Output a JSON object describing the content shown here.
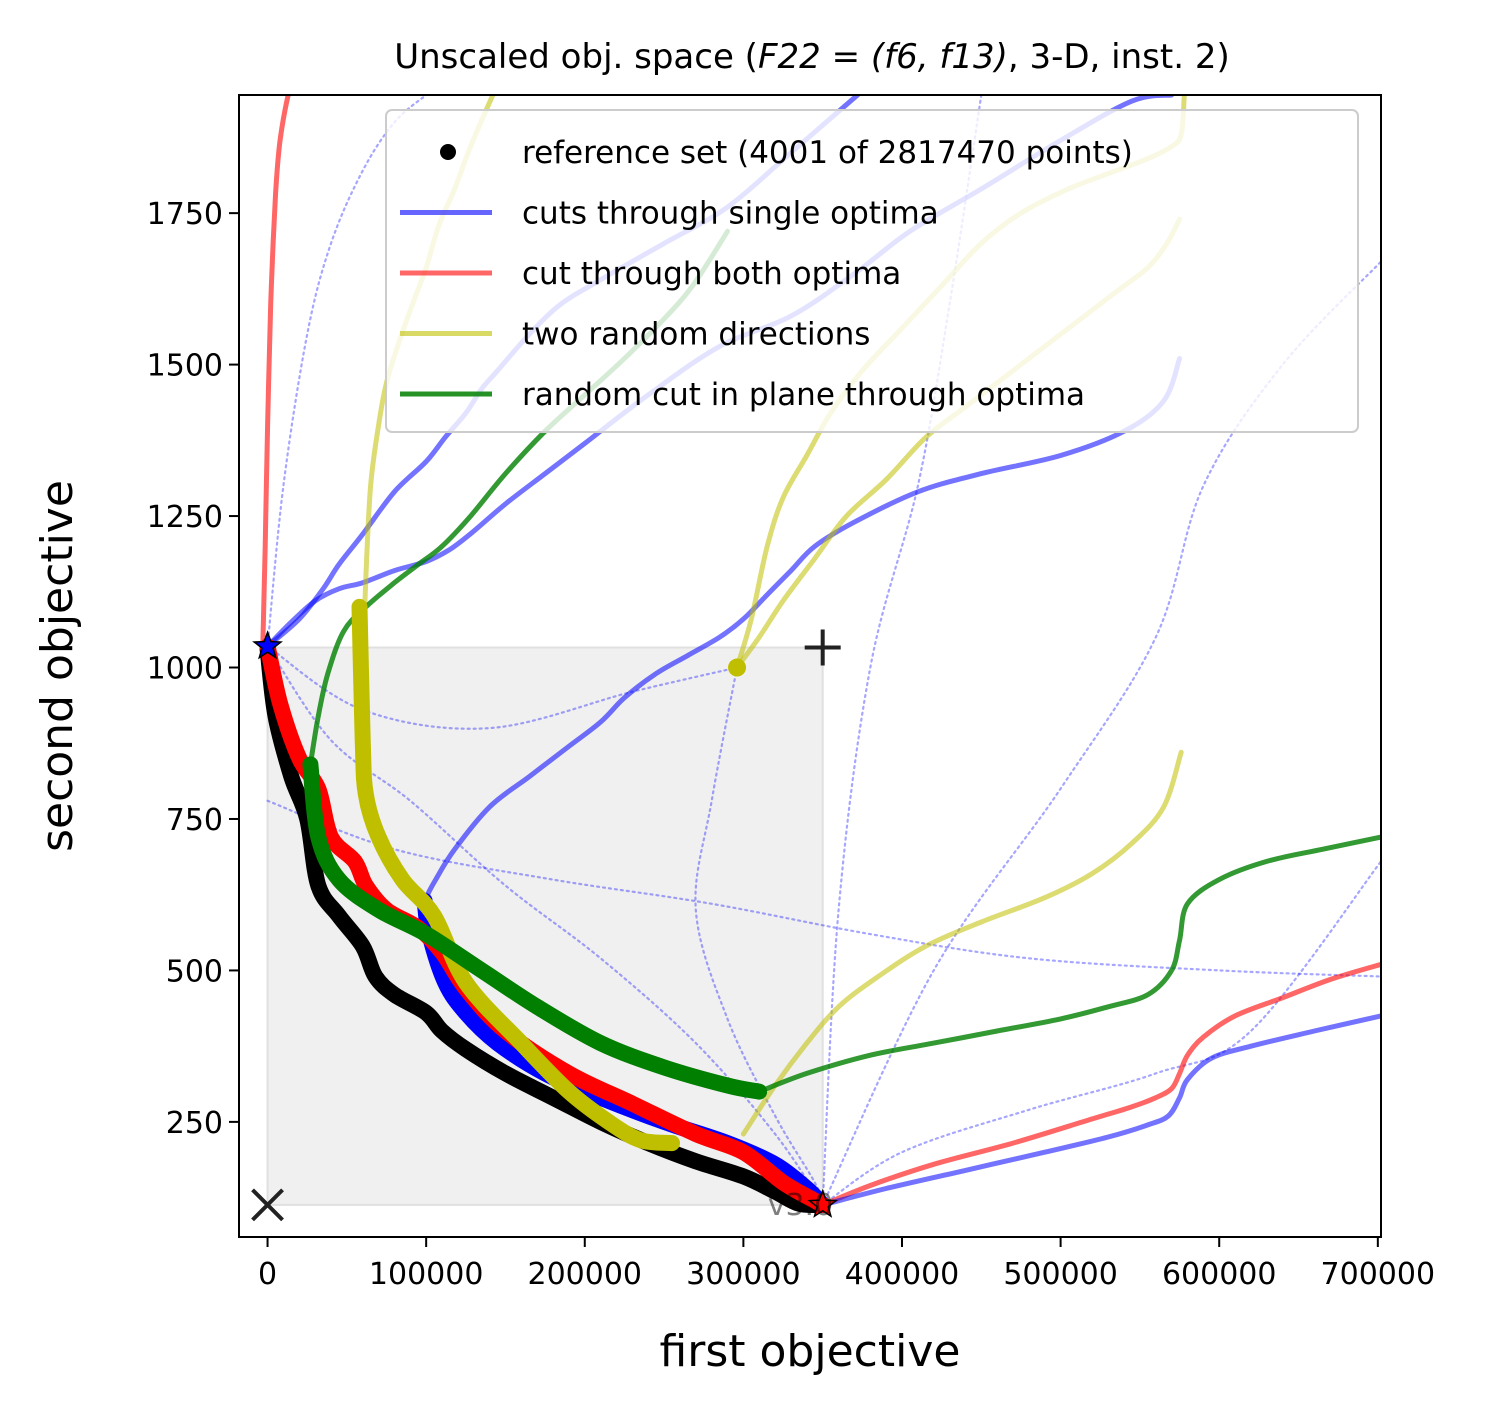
{
  "chart_data": {
    "type": "line",
    "title_text": "Unscaled obj. space (",
    "title_math": "F22 = (f6, f13)",
    "title_tail": ", 3-D, inst. 2)",
    "xlabel": "first objective",
    "ylabel": "second objective",
    "xlim": [
      -18000,
      702000
    ],
    "ylim": [
      60,
      1945
    ],
    "xticks": [
      0,
      100000,
      200000,
      300000,
      400000,
      500000,
      600000,
      700000
    ],
    "xtick_labels": [
      "0",
      "100000",
      "200000",
      "300000",
      "400000",
      "500000",
      "600000",
      "700000"
    ],
    "yticks": [
      250,
      500,
      750,
      1000,
      1250,
      1500,
      1750
    ],
    "ytick_labels": [
      "250",
      "500",
      "750",
      "1000",
      "1250",
      "1500",
      "1750"
    ],
    "grid": false,
    "legend_position": "top-right",
    "version_label": "v3.0",
    "ideal_point": [
      0,
      113
    ],
    "nadir_point": [
      350000,
      1033
    ],
    "optimum_1": [
      0,
      1035
    ],
    "optimum_2": [
      350000,
      113
    ],
    "colors": {
      "blue": "#0000ff",
      "red": "#ff0000",
      "yellow": "#bfbf00",
      "green": "#007f00",
      "black": "#000000",
      "box": "#f0f0f0"
    },
    "legend": [
      {
        "label": "reference set (4001 of 2817470 points)",
        "kind": "marker",
        "color": "#000000"
      },
      {
        "label": "cuts through single optima",
        "kind": "line",
        "color": "#0000ff"
      },
      {
        "label": "cut through both optima",
        "kind": "line",
        "color": "#ff0000"
      },
      {
        "label": "two random directions",
        "kind": "line",
        "color": "#bfbf00"
      },
      {
        "label": "random cut in plane through optima",
        "kind": "line",
        "color": "#007f00"
      }
    ],
    "series": [
      {
        "name": "reference set (4001 of 2817470 points)",
        "style": "front",
        "color": "#000000",
        "x": [
          0,
          5000,
          15000,
          25000,
          32000,
          45000,
          60000,
          68000,
          80000,
          100000,
          110000,
          125000,
          150000,
          180000,
          210000,
          240000,
          270000,
          300000,
          320000,
          335000,
          350000
        ],
        "y": [
          1030,
          920,
          820,
          750,
          640,
          590,
          540,
          490,
          460,
          430,
          400,
          370,
          330,
          290,
          250,
          215,
          185,
          160,
          135,
          115,
          113
        ]
      },
      {
        "name": "cuts through single optima (front)",
        "style": "front",
        "color": "#0000ff",
        "x": [
          99000,
          102000,
          112000,
          125000,
          145000,
          175000,
          210000,
          250000,
          290000,
          320000,
          340000,
          350000
        ],
        "y": [
          615,
          560,
          480,
          430,
          380,
          330,
          290,
          250,
          215,
          180,
          140,
          113
        ]
      },
      {
        "name": "cut through both optima (front)",
        "style": "front",
        "color": "#ff0000",
        "x": [
          0,
          8000,
          20000,
          32000,
          40000,
          55000,
          62000,
          75000,
          95000,
          110000,
          125000,
          150000,
          190000,
          230000,
          270000,
          300000,
          325000,
          345000,
          350000
        ],
        "y": [
          1035,
          940,
          850,
          800,
          720,
          680,
          640,
          600,
          570,
          530,
          470,
          400,
          330,
          280,
          230,
          200,
          150,
          120,
          113
        ]
      },
      {
        "name": "two random directions (front)",
        "style": "front",
        "color": "#bfbf00",
        "x": [
          58000,
          60000,
          62000,
          70000,
          85000,
          105000,
          125000,
          160000,
          190000,
          215000,
          235000,
          255000
        ],
        "y": [
          1100,
          880,
          790,
          720,
          650,
          590,
          480,
          380,
          300,
          250,
          220,
          215
        ]
      },
      {
        "name": "random cut in plane through optima (front)",
        "style": "front",
        "color": "#007f00",
        "x": [
          27000,
          32000,
          45000,
          70000,
          100000,
          135000,
          170000,
          210000,
          250000,
          290000,
          310000
        ],
        "y": [
          840,
          720,
          650,
          600,
          560,
          500,
          440,
          380,
          340,
          310,
          300
        ]
      },
      {
        "name": "cut through both optima",
        "style": "line",
        "color": "#ff0000",
        "alpha": 0.6,
        "x": [
          -3000,
          -2500,
          -1500,
          0,
          1000,
          2000,
          3500,
          5000,
          7000,
          9000,
          11000,
          13000
        ],
        "y": [
          1035,
          1090,
          1200,
          1400,
          1500,
          1600,
          1700,
          1780,
          1850,
          1890,
          1920,
          1945
        ]
      },
      {
        "name": "cut through both optima",
        "style": "line",
        "color": "#ff0000",
        "alpha": 0.6,
        "x": [
          350000,
          380000,
          420000,
          470000,
          520000,
          545000,
          560000,
          570000,
          575000,
          580000,
          590000,
          610000,
          640000,
          670000,
          702000
        ],
        "y": [
          113,
          145,
          180,
          215,
          255,
          275,
          290,
          305,
          330,
          360,
          390,
          425,
          455,
          485,
          510
        ]
      },
      {
        "name": "cuts through single optima",
        "style": "line",
        "color": "#0000ff",
        "alpha": 0.55,
        "x": [
          0,
          20000,
          35000,
          45000,
          60000,
          80000,
          100000,
          112000,
          125000,
          135000,
          145000,
          165000,
          185000,
          210000,
          250000,
          290000,
          330000,
          372000
        ],
        "y": [
          1035,
          1080,
          1130,
          1170,
          1220,
          1290,
          1340,
          1380,
          1420,
          1460,
          1490,
          1550,
          1600,
          1640,
          1700,
          1760,
          1850,
          1945
        ]
      },
      {
        "name": "cuts through single optima",
        "style": "line",
        "color": "#0000ff",
        "alpha": 0.55,
        "x": [
          0,
          15000,
          30000,
          45000,
          60000,
          80000,
          100000,
          115000,
          130000,
          150000,
          175000,
          200000,
          240000,
          285000,
          330000,
          370000,
          405000,
          450000,
          500000,
          545000,
          570000
        ],
        "y": [
          1035,
          1075,
          1110,
          1130,
          1140,
          1160,
          1175,
          1195,
          1225,
          1270,
          1320,
          1370,
          1450,
          1530,
          1580,
          1650,
          1720,
          1790,
          1870,
          1935,
          1945
        ]
      },
      {
        "name": "cuts through single optima",
        "style": "line",
        "color": "#0000ff",
        "alpha": 0.55,
        "x": [
          98000,
          100000,
          106000,
          118000,
          140000,
          165000,
          190000,
          210000,
          225000,
          245000,
          265000,
          285000,
          300000,
          315000,
          330000,
          345000,
          370000,
          410000,
          450000,
          500000,
          540000,
          565000,
          575000
        ],
        "y": [
          600,
          620,
          650,
          700,
          770,
          820,
          870,
          910,
          950,
          990,
          1020,
          1050,
          1080,
          1120,
          1160,
          1200,
          1240,
          1290,
          1320,
          1350,
          1390,
          1440,
          1510
        ]
      },
      {
        "name": "cuts through single optima",
        "style": "line",
        "color": "#0000ff",
        "alpha": 0.55,
        "x": [
          350000,
          390000,
          440000,
          490000,
          530000,
          555000,
          568000,
          575000,
          580000,
          595000,
          620000,
          660000,
          702000
        ],
        "y": [
          113,
          140,
          170,
          200,
          225,
          245,
          260,
          290,
          320,
          355,
          375,
          400,
          425
        ]
      },
      {
        "name": "two random directions",
        "style": "line",
        "color": "#bfbf00",
        "alpha": 0.55,
        "x": [
          60000,
          62000,
          65000,
          70000,
          75000,
          82000,
          90000,
          100000,
          108000,
          118000,
          128000,
          142000
        ],
        "y": [
          1000,
          1150,
          1300,
          1400,
          1470,
          1530,
          1590,
          1660,
          1730,
          1790,
          1860,
          1945
        ]
      },
      {
        "name": "two random directions",
        "style": "line",
        "color": "#bfbf00",
        "alpha": 0.55,
        "x": [
          296000,
          305000,
          315000,
          325000,
          340000,
          355000,
          375000,
          400000,
          425000,
          450000,
          475000,
          505000,
          535000,
          555000,
          570000,
          576000,
          578000
        ],
        "y": [
          1000,
          1080,
          1200,
          1280,
          1350,
          1420,
          1490,
          1560,
          1630,
          1700,
          1750,
          1790,
          1820,
          1840,
          1860,
          1880,
          1945
        ]
      },
      {
        "name": "two random directions",
        "style": "line",
        "color": "#bfbf00",
        "alpha": 0.55,
        "x": [
          296000,
          310000,
          325000,
          345000,
          365000,
          390000,
          415000,
          440000,
          465000,
          490000,
          510000,
          535000,
          555000,
          567000,
          575000
        ],
        "y": [
          1000,
          1050,
          1110,
          1180,
          1250,
          1310,
          1380,
          1430,
          1480,
          1530,
          1570,
          1620,
          1660,
          1700,
          1740
        ]
      },
      {
        "name": "two random directions",
        "style": "line",
        "color": "#bfbf00",
        "alpha": 0.55,
        "x": [
          300000,
          320000,
          340000,
          360000,
          385000,
          415000,
          450000,
          490000,
          520000,
          545000,
          565000,
          576000
        ],
        "y": [
          230,
          310,
          380,
          440,
          490,
          540,
          580,
          620,
          660,
          710,
          770,
          860
        ]
      },
      {
        "name": "random cut in plane through optima",
        "style": "line",
        "color": "#007f00",
        "alpha": 0.8,
        "x": [
          27000,
          32000,
          38000,
          48000,
          62000,
          80000,
          95000,
          110000,
          128000,
          150000,
          175000,
          200000,
          225000,
          248000,
          268000,
          290000
        ],
        "y": [
          840,
          920,
          990,
          1060,
          1100,
          1140,
          1170,
          1200,
          1250,
          1320,
          1390,
          1450,
          1510,
          1570,
          1630,
          1720
        ]
      },
      {
        "name": "random cut in plane through optima",
        "style": "line",
        "color": "#007f00",
        "alpha": 0.8,
        "x": [
          310000,
          340000,
          380000,
          420000,
          460000,
          500000,
          530000,
          555000,
          570000,
          575000,
          580000,
          600000,
          630000,
          665000,
          702000
        ],
        "y": [
          300,
          330,
          360,
          380,
          400,
          420,
          440,
          460,
          500,
          550,
          610,
          650,
          680,
          700,
          720
        ]
      },
      {
        "name": "dotted cuts",
        "style": "dotted",
        "color": "#0000ff",
        "alpha": 0.35,
        "x": [
          0,
          40000,
          90000,
          150000,
          210000,
          270000,
          320000,
          350000
        ],
        "y": [
          1035,
          880,
          780,
          640,
          520,
          380,
          230,
          113
        ]
      },
      {
        "name": "dotted cuts",
        "style": "dotted",
        "color": "#0000ff",
        "alpha": 0.35,
        "x": [
          0,
          60000,
          140000,
          230000,
          296000
        ],
        "y": [
          1035,
          930,
          900,
          960,
          1000
        ]
      },
      {
        "name": "dotted cuts",
        "style": "dotted",
        "color": "#0000ff",
        "alpha": 0.35,
        "x": [
          296000,
          280000,
          270000,
          290000,
          320000,
          345000,
          350000
        ],
        "y": [
          1000,
          780,
          600,
          420,
          260,
          150,
          113
        ]
      },
      {
        "name": "dotted cuts",
        "style": "dotted",
        "color": "#0000ff",
        "alpha": 0.35,
        "x": [
          0,
          80000,
          180000,
          280000,
          380000,
          480000,
          600000,
          702000
        ],
        "y": [
          780,
          700,
          650,
          610,
          560,
          520,
          500,
          490
        ]
      },
      {
        "name": "dotted cuts",
        "style": "dotted",
        "color": "#0000ff",
        "alpha": 0.35,
        "x": [
          350000,
          360000,
          380000,
          410000,
          430000,
          450000
        ],
        "y": [
          113,
          600,
          1000,
          1300,
          1600,
          1945
        ]
      },
      {
        "name": "dotted cuts",
        "style": "dotted",
        "color": "#0000ff",
        "alpha": 0.35,
        "x": [
          350000,
          420000,
          500000,
          560000,
          590000,
          640000,
          702000
        ],
        "y": [
          113,
          500,
          800,
          1050,
          1300,
          1500,
          1670
        ]
      },
      {
        "name": "dotted cuts",
        "style": "dotted",
        "color": "#0000ff",
        "alpha": 0.35,
        "x": [
          0,
          10000,
          25000,
          40000,
          60000,
          80000,
          100000
        ],
        "y": [
          1035,
          1300,
          1550,
          1700,
          1820,
          1900,
          1945
        ]
      },
      {
        "name": "dotted cuts",
        "style": "dotted",
        "color": "#0000ff",
        "alpha": 0.35,
        "x": [
          350000,
          400000,
          480000,
          560000,
          620000,
          702000
        ],
        "y": [
          113,
          200,
          270,
          330,
          400,
          680
        ]
      }
    ]
  }
}
